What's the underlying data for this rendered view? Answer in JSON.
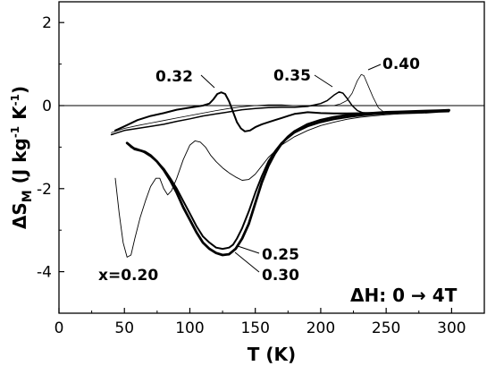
{
  "chart_data": {
    "type": "line",
    "xlabel": "T (K)",
    "ylabel_main": "ΔS",
    "ylabel_sub": "M",
    "ylabel_units_pre": " (J kg",
    "ylabel_units_sup1": "-1",
    "ylabel_units_mid": " K",
    "ylabel_units_sup2": "-1",
    "ylabel_units_post": ")",
    "xlim": [
      0,
      325
    ],
    "ylim": [
      -5,
      2.5
    ],
    "xticks": [
      0,
      50,
      100,
      150,
      200,
      250,
      300
    ],
    "yticks": [
      2,
      0,
      -2,
      -4
    ],
    "zero_line": true,
    "grid": false,
    "annotation_text": "ΔH: 0 →  4T",
    "series": [
      {
        "name": "x=0.20",
        "line_width": 0.9,
        "points": [
          [
            43,
            -1.75
          ],
          [
            46,
            -2.6
          ],
          [
            49,
            -3.3
          ],
          [
            52,
            -3.65
          ],
          [
            55,
            -3.6
          ],
          [
            58,
            -3.2
          ],
          [
            62,
            -2.7
          ],
          [
            66,
            -2.3
          ],
          [
            70,
            -1.95
          ],
          [
            74,
            -1.75
          ],
          [
            77,
            -1.75
          ],
          [
            80,
            -2.0
          ],
          [
            83,
            -2.15
          ],
          [
            86,
            -2.05
          ],
          [
            90,
            -1.75
          ],
          [
            95,
            -1.3
          ],
          [
            100,
            -0.95
          ],
          [
            104,
            -0.85
          ],
          [
            108,
            -0.88
          ],
          [
            112,
            -1.0
          ],
          [
            116,
            -1.2
          ],
          [
            120,
            -1.35
          ],
          [
            125,
            -1.5
          ],
          [
            130,
            -1.62
          ],
          [
            135,
            -1.72
          ],
          [
            140,
            -1.8
          ],
          [
            145,
            -1.78
          ],
          [
            150,
            -1.65
          ],
          [
            155,
            -1.45
          ],
          [
            160,
            -1.25
          ],
          [
            170,
            -0.95
          ],
          [
            180,
            -0.75
          ],
          [
            190,
            -0.6
          ],
          [
            200,
            -0.48
          ],
          [
            210,
            -0.4
          ],
          [
            220,
            -0.33
          ],
          [
            230,
            -0.28
          ],
          [
            240,
            -0.25
          ],
          [
            250,
            -0.22
          ],
          [
            260,
            -0.2
          ],
          [
            270,
            -0.19
          ],
          [
            280,
            -0.18
          ],
          [
            290,
            -0.16
          ],
          [
            298,
            -0.15
          ]
        ]
      },
      {
        "name": "0.25",
        "line_width": 2.0,
        "points": [
          [
            55,
            -1.0
          ],
          [
            60,
            -1.05
          ],
          [
            65,
            -1.12
          ],
          [
            70,
            -1.22
          ],
          [
            75,
            -1.35
          ],
          [
            80,
            -1.52
          ],
          [
            85,
            -1.75
          ],
          [
            90,
            -2.0
          ],
          [
            95,
            -2.3
          ],
          [
            100,
            -2.6
          ],
          [
            105,
            -2.9
          ],
          [
            110,
            -3.15
          ],
          [
            115,
            -3.3
          ],
          [
            120,
            -3.42
          ],
          [
            125,
            -3.45
          ],
          [
            130,
            -3.42
          ],
          [
            133,
            -3.35
          ],
          [
            136,
            -3.2
          ],
          [
            140,
            -2.95
          ],
          [
            145,
            -2.55
          ],
          [
            150,
            -2.1
          ],
          [
            155,
            -1.7
          ],
          [
            160,
            -1.35
          ],
          [
            165,
            -1.1
          ],
          [
            170,
            -0.9
          ],
          [
            180,
            -0.65
          ],
          [
            190,
            -0.5
          ],
          [
            200,
            -0.4
          ],
          [
            210,
            -0.33
          ],
          [
            220,
            -0.28
          ],
          [
            230,
            -0.24
          ],
          [
            240,
            -0.21
          ],
          [
            250,
            -0.19
          ],
          [
            260,
            -0.17
          ],
          [
            270,
            -0.16
          ],
          [
            280,
            -0.15
          ],
          [
            290,
            -0.14
          ],
          [
            298,
            -0.13
          ]
        ]
      },
      {
        "name": "0.30",
        "line_width": 2.8,
        "points": [
          [
            52,
            -0.9
          ],
          [
            55,
            -0.98
          ],
          [
            58,
            -1.05
          ],
          [
            62,
            -1.08
          ],
          [
            66,
            -1.12
          ],
          [
            70,
            -1.2
          ],
          [
            75,
            -1.35
          ],
          [
            80,
            -1.55
          ],
          [
            85,
            -1.8
          ],
          [
            90,
            -2.1
          ],
          [
            95,
            -2.45
          ],
          [
            100,
            -2.75
          ],
          [
            105,
            -3.05
          ],
          [
            110,
            -3.3
          ],
          [
            115,
            -3.45
          ],
          [
            120,
            -3.55
          ],
          [
            125,
            -3.6
          ],
          [
            130,
            -3.58
          ],
          [
            135,
            -3.45
          ],
          [
            140,
            -3.2
          ],
          [
            145,
            -2.85
          ],
          [
            150,
            -2.35
          ],
          [
            155,
            -1.85
          ],
          [
            160,
            -1.45
          ],
          [
            165,
            -1.15
          ],
          [
            170,
            -0.92
          ],
          [
            175,
            -0.75
          ],
          [
            180,
            -0.62
          ],
          [
            190,
            -0.45
          ],
          [
            200,
            -0.35
          ],
          [
            210,
            -0.28
          ],
          [
            220,
            -0.23
          ],
          [
            230,
            -0.2
          ],
          [
            240,
            -0.18
          ],
          [
            250,
            -0.16
          ],
          [
            260,
            -0.15
          ],
          [
            270,
            -0.14
          ],
          [
            280,
            -0.13
          ],
          [
            290,
            -0.12
          ],
          [
            298,
            -0.11
          ]
        ]
      },
      {
        "name": "0.32",
        "line_width": 2.0,
        "points": [
          [
            43,
            -0.6
          ],
          [
            50,
            -0.5
          ],
          [
            60,
            -0.35
          ],
          [
            70,
            -0.25
          ],
          [
            80,
            -0.18
          ],
          [
            90,
            -0.1
          ],
          [
            100,
            -0.05
          ],
          [
            110,
            0.0
          ],
          [
            115,
            0.05
          ],
          [
            118,
            0.15
          ],
          [
            121,
            0.28
          ],
          [
            124,
            0.32
          ],
          [
            127,
            0.28
          ],
          [
            130,
            0.1
          ],
          [
            133,
            -0.15
          ],
          [
            136,
            -0.4
          ],
          [
            139,
            -0.55
          ],
          [
            142,
            -0.62
          ],
          [
            146,
            -0.6
          ],
          [
            150,
            -0.52
          ],
          [
            155,
            -0.45
          ],
          [
            160,
            -0.4
          ],
          [
            165,
            -0.35
          ],
          [
            170,
            -0.3
          ],
          [
            175,
            -0.25
          ],
          [
            180,
            -0.2
          ],
          [
            185,
            -0.18
          ],
          [
            190,
            -0.16
          ],
          [
            195,
            -0.17
          ],
          [
            200,
            -0.18
          ],
          [
            210,
            -0.19
          ],
          [
            220,
            -0.19
          ],
          [
            240,
            -0.18
          ],
          [
            260,
            -0.16
          ],
          [
            280,
            -0.14
          ],
          [
            298,
            -0.12
          ]
        ]
      },
      {
        "name": "0.35",
        "line_width": 1.5,
        "points": [
          [
            40,
            -0.7
          ],
          [
            50,
            -0.6
          ],
          [
            60,
            -0.55
          ],
          [
            70,
            -0.5
          ],
          [
            80,
            -0.45
          ],
          [
            90,
            -0.38
          ],
          [
            100,
            -0.32
          ],
          [
            110,
            -0.25
          ],
          [
            120,
            -0.2
          ],
          [
            130,
            -0.15
          ],
          [
            140,
            -0.1
          ],
          [
            150,
            -0.07
          ],
          [
            160,
            -0.05
          ],
          [
            170,
            -0.04
          ],
          [
            180,
            -0.04
          ],
          [
            190,
            -0.02
          ],
          [
            200,
            0.05
          ],
          [
            205,
            0.12
          ],
          [
            210,
            0.25
          ],
          [
            214,
            0.33
          ],
          [
            217,
            0.3
          ],
          [
            220,
            0.18
          ],
          [
            224,
            0.0
          ],
          [
            228,
            -0.12
          ],
          [
            232,
            -0.17
          ],
          [
            240,
            -0.18
          ],
          [
            250,
            -0.18
          ],
          [
            260,
            -0.17
          ],
          [
            270,
            -0.16
          ],
          [
            280,
            -0.15
          ],
          [
            290,
            -0.14
          ],
          [
            298,
            -0.13
          ]
        ]
      },
      {
        "name": "0.40",
        "line_width": 0.8,
        "points": [
          [
            40,
            -0.65
          ],
          [
            50,
            -0.55
          ],
          [
            60,
            -0.48
          ],
          [
            70,
            -0.42
          ],
          [
            80,
            -0.36
          ],
          [
            90,
            -0.3
          ],
          [
            100,
            -0.24
          ],
          [
            110,
            -0.18
          ],
          [
            120,
            -0.12
          ],
          [
            130,
            -0.07
          ],
          [
            140,
            -0.03
          ],
          [
            150,
            0.0
          ],
          [
            160,
            0.02
          ],
          [
            170,
            0.02
          ],
          [
            180,
            0.0
          ],
          [
            190,
            -0.01
          ],
          [
            200,
            -0.01
          ],
          [
            210,
            0.0
          ],
          [
            215,
            0.04
          ],
          [
            220,
            0.12
          ],
          [
            224,
            0.3
          ],
          [
            228,
            0.6
          ],
          [
            231,
            0.75
          ],
          [
            233,
            0.72
          ],
          [
            236,
            0.5
          ],
          [
            240,
            0.2
          ],
          [
            244,
            -0.05
          ],
          [
            248,
            -0.15
          ],
          [
            255,
            -0.18
          ],
          [
            265,
            -0.18
          ],
          [
            275,
            -0.17
          ],
          [
            285,
            -0.16
          ],
          [
            298,
            -0.14
          ]
        ]
      }
    ]
  }
}
